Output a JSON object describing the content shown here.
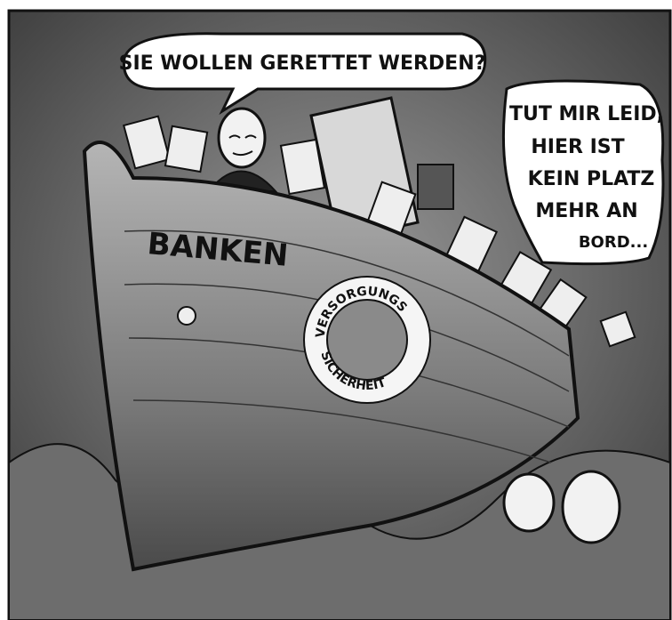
{
  "speech_bubbles": [
    {
      "lines": [
        "SIE WOLLEN GERETTET WERDEN?"
      ]
    },
    {
      "lines": [
        "TUT MIR LEID,",
        "HIER IST",
        "KEIN PLATZ",
        "MEHR AN",
        "BORD..."
      ]
    }
  ],
  "ship": {
    "name": "BANKEN",
    "life_ring": [
      "VERSORGUNGS",
      "SICHERHEIT"
    ]
  }
}
